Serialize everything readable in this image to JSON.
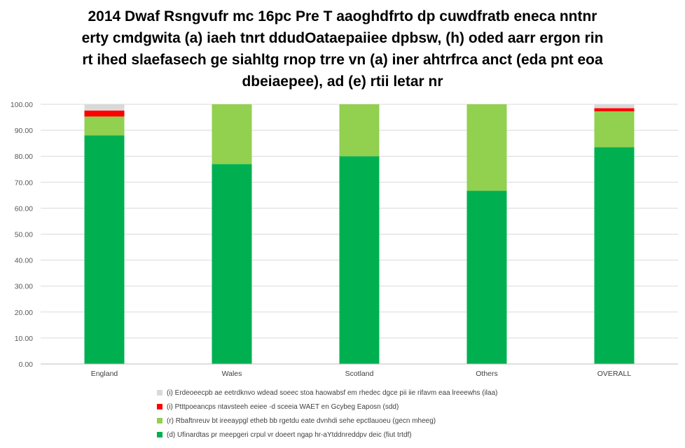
{
  "chart_data": {
    "type": "bar",
    "stacked": true,
    "title_lines": [
      "2014 Dwaf Rsngvufr mc 16pc Pre T aaoghdfrto dp cuwdfratb eneca nntnr",
      "erty cmdgwita (a) iaeh tnrt ddudOataepaiiee dpbsw, (h) oded aarr ergon rin",
      "rt ihed slaefasech ge siahltg rnop trre vn (a) iner ahtrfrca anct (eda pnt eoa",
      "dbeiaepee), ad (e) rtii letar nr"
    ],
    "categories": [
      "England",
      "Wales",
      "Scotland",
      "Others",
      "OVERALL"
    ],
    "ylim": [
      0,
      100
    ],
    "yticks": [
      "0.00",
      "10.00",
      "20.00",
      "30.00",
      "40.00",
      "50.00",
      "60.00",
      "70.00",
      "80.00",
      "90.00",
      "100.00"
    ],
    "grid": true,
    "legend_position": "bottom",
    "series": [
      {
        "name": "(d) Ufinardtas pr meepgeri crpul vr doeert ngap hr-aYtddnreddpv deic (fiut trtdf)",
        "color": "#00b050",
        "values": [
          88.0,
          77.0,
          80.0,
          66.7,
          83.5
        ]
      },
      {
        "name": "(r) Rbaftnreuv bt ireeaypgl etheb bb rgetdu eate dvnhdi sehe epctlauoeu (gecn mheeg)",
        "color": "#92d050",
        "values": [
          7.3,
          23.0,
          20.0,
          33.3,
          13.8
        ]
      },
      {
        "name": "(i) Ptttpoeancps ntavsteeh eeiee -d sceeia WAET en Gcybeg Eaposn (sdd)",
        "color": "#ff0000",
        "values": [
          2.3,
          0,
          0,
          0,
          1.2
        ]
      },
      {
        "name": "(i) Erdeoeecpb ae eetrdknvo wdead soeec stoa haowabsf em rhedec dgce pii iie rifavm eaa lreeewhs (ilaa)",
        "color": "#d9d9d9",
        "values": [
          2.4,
          0,
          0,
          0,
          1.5
        ]
      }
    ]
  }
}
